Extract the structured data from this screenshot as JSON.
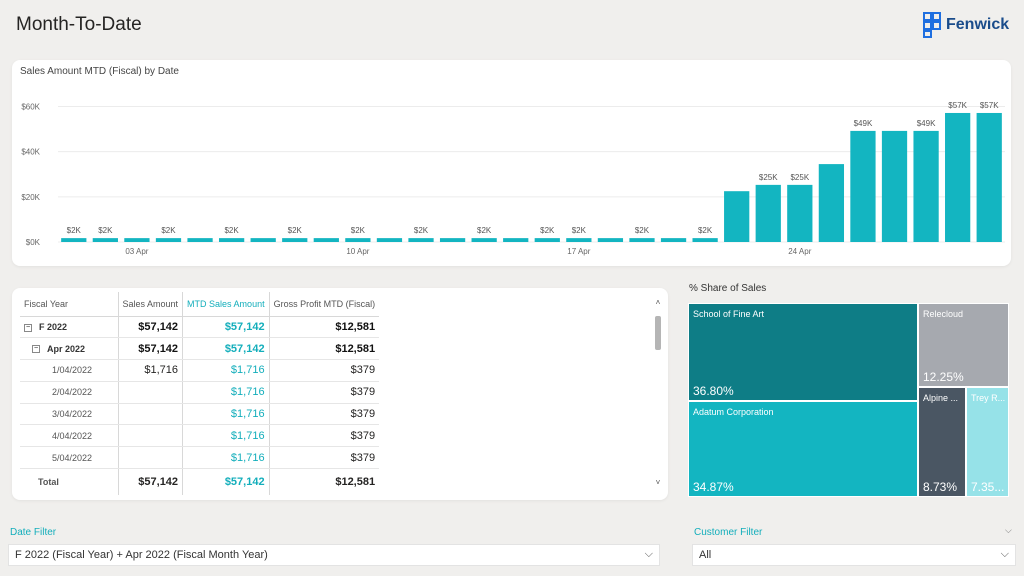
{
  "page": {
    "title": "Month-To-Date"
  },
  "logo": {
    "text": "Fenwick",
    "color": "#1a4c8b"
  },
  "chart_data": {
    "type": "bar",
    "title": "Sales Amount MTD (Fiscal) by Date",
    "color": "#13b5c1",
    "ylim": [
      0,
      62000
    ],
    "y_ticks": [
      "$0K",
      "$20K",
      "$40K",
      "$60K"
    ],
    "y_tick_values": [
      0,
      20000,
      40000,
      60000
    ],
    "x_ticks": [
      "03 Apr",
      "10 Apr",
      "17 Apr",
      "24 Apr"
    ],
    "x_tick_categories": [
      3,
      10,
      17,
      24
    ],
    "categories": [
      1,
      2,
      3,
      4,
      5,
      6,
      7,
      8,
      9,
      10,
      11,
      12,
      13,
      14,
      15,
      16,
      17,
      18,
      19,
      20,
      21,
      22,
      23,
      24,
      25,
      26,
      27,
      28,
      29,
      30
    ],
    "values": [
      1716,
      1716,
      1716,
      1716,
      1716,
      1716,
      1716,
      1716,
      1716,
      1716,
      1716,
      1716,
      1716,
      1716,
      1716,
      1716,
      1716,
      1716,
      1716,
      1716,
      1716,
      22500,
      25300,
      25300,
      34500,
      49200,
      49200,
      49200,
      57142,
      57142
    ],
    "data_labels": [
      "$2K",
      "$2K",
      "",
      "$2K",
      "",
      "$2K",
      "",
      "$2K",
      "",
      "$2K",
      "",
      "$2K",
      "",
      "$2K",
      "",
      "$2K",
      "$2K",
      "",
      "$2K",
      "",
      "$2K",
      "",
      "$25K",
      "$25K",
      "",
      "$49K",
      "",
      "$49K",
      "$57K",
      "$57K"
    ],
    "grid": true
  },
  "table": {
    "headers": [
      "Fiscal Year",
      "Sales Amount",
      "MTD Sales Amount",
      "Gross Profit MTD (Fiscal)"
    ],
    "expander_collapse": "−",
    "rows": [
      {
        "label": "F 2022",
        "level": 0,
        "expander": true,
        "bold": true,
        "sales": "$57,142",
        "mtd": "$57,142",
        "gp": "$12,581"
      },
      {
        "label": "Apr 2022",
        "level": 1,
        "expander": true,
        "bold": true,
        "sales": "$57,142",
        "mtd": "$57,142",
        "gp": "$12,581"
      },
      {
        "label": "1/04/2022",
        "level": 2,
        "expander": false,
        "bold": false,
        "sales": "$1,716",
        "mtd": "$1,716",
        "gp": "$379"
      },
      {
        "label": "2/04/2022",
        "level": 2,
        "expander": false,
        "bold": false,
        "sales": "",
        "mtd": "$1,716",
        "gp": "$379"
      },
      {
        "label": "3/04/2022",
        "level": 2,
        "expander": false,
        "bold": false,
        "sales": "",
        "mtd": "$1,716",
        "gp": "$379"
      },
      {
        "label": "4/04/2022",
        "level": 2,
        "expander": false,
        "bold": false,
        "sales": "",
        "mtd": "$1,716",
        "gp": "$379"
      },
      {
        "label": "5/04/2022",
        "level": 2,
        "expander": false,
        "bold": false,
        "sales": "",
        "mtd": "$1,716",
        "gp": "$379"
      }
    ],
    "total": {
      "label": "Total",
      "sales": "$57,142",
      "mtd": "$57,142",
      "gp": "$12,581"
    },
    "scroll_up": "˄",
    "scroll_down": "˅"
  },
  "treemap": {
    "title": "% Share of Sales",
    "tiles": [
      {
        "name": "School of Fine Art",
        "value": "36.80%",
        "color": "#0e7d86"
      },
      {
        "name": "Adatum Corporation",
        "value": "34.87%",
        "color": "#13b5c1"
      },
      {
        "name": "Relecloud",
        "value": "12.25%",
        "color": "#a6a9af"
      },
      {
        "name": "Alpine ...",
        "value": "8.73%",
        "color": "#4a5663"
      },
      {
        "name": "Trey R...",
        "value": "7.35...",
        "color": "#96e2e8"
      }
    ]
  },
  "filters": {
    "date": {
      "label": "Date Filter",
      "value": "F 2022 (Fiscal Year) + Apr 2022 (Fiscal Month Year)"
    },
    "customer": {
      "label": "Customer Filter",
      "value": "All"
    },
    "chevron": "⌵"
  }
}
